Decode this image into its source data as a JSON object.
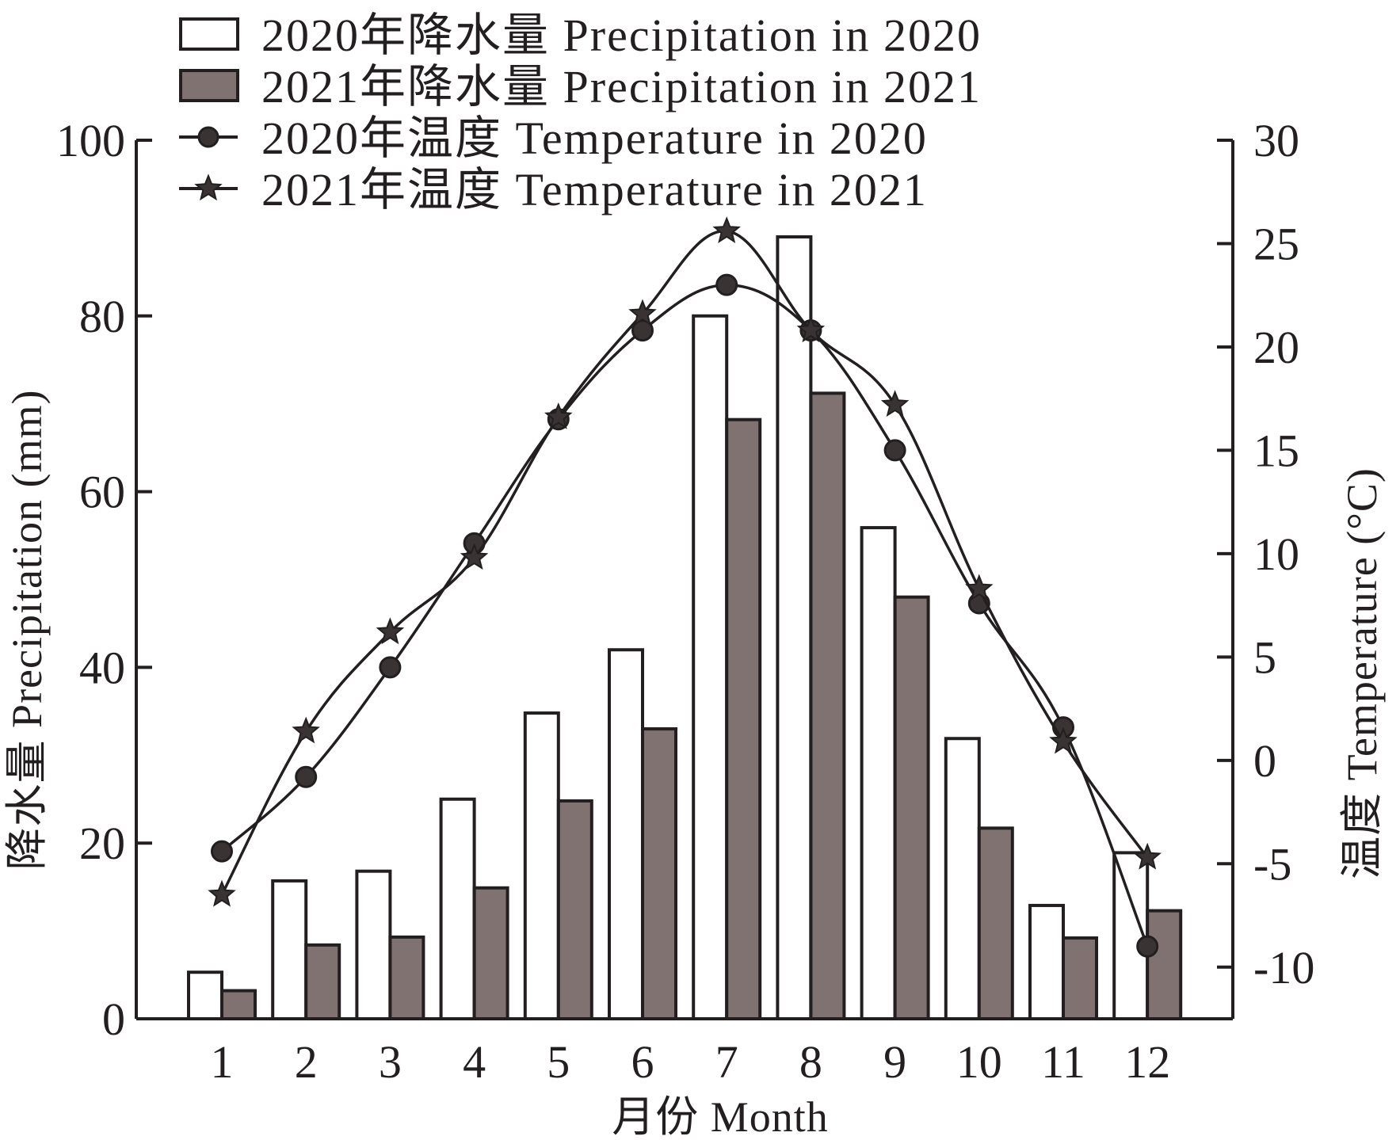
{
  "chart_data": {
    "type": "bar",
    "categories": [
      "1",
      "2",
      "3",
      "4",
      "5",
      "6",
      "7",
      "8",
      "9",
      "10",
      "11",
      "12"
    ],
    "series": [
      {
        "name": "2020年降水量 Precipitation in 2020",
        "kind": "bar",
        "axis": "left",
        "color": "#ffffff",
        "values": [
          5.3,
          15.7,
          16.8,
          25.0,
          34.8,
          42.0,
          80.0,
          89.0,
          55.9,
          31.9,
          12.9,
          18.9
        ]
      },
      {
        "name": "2021年降水量 Precipitation in 2021",
        "kind": "bar",
        "axis": "left",
        "color": "#7f7270",
        "values": [
          3.2,
          8.4,
          9.3,
          14.9,
          24.8,
          33.0,
          68.2,
          71.2,
          48.0,
          21.7,
          9.2,
          12.3
        ]
      },
      {
        "name": "2020年温度 Temperature in 2020",
        "kind": "line",
        "marker": "circle",
        "axis": "right",
        "color": "#231f20",
        "values": [
          -4.4,
          -0.8,
          4.5,
          10.5,
          16.5,
          20.8,
          23.0,
          20.8,
          15.0,
          7.6,
          1.6,
          -9.0
        ]
      },
      {
        "name": "2021年温度 Temperature in 2021",
        "kind": "line",
        "marker": "star",
        "axis": "right",
        "color": "#231f20",
        "values": [
          -6.5,
          1.4,
          6.2,
          9.8,
          16.6,
          21.6,
          25.6,
          20.8,
          17.2,
          8.3,
          0.9,
          -4.7
        ]
      }
    ],
    "xlabel": "月份 Month",
    "ylabel_left": "降水量 Precipitation (mm)",
    "ylabel_right": "温度 Temperature (°C)",
    "ylim_left": [
      0,
      100
    ],
    "ylim_right": [
      -12.5,
      30
    ],
    "yticks_left": [
      "0",
      "20",
      "40",
      "60",
      "80",
      "100"
    ],
    "yticks_right": [
      "-10",
      "-5",
      "0",
      "5",
      "10",
      "15",
      "20",
      "25",
      "30"
    ],
    "legend_position": "top-left",
    "grid": false
  }
}
